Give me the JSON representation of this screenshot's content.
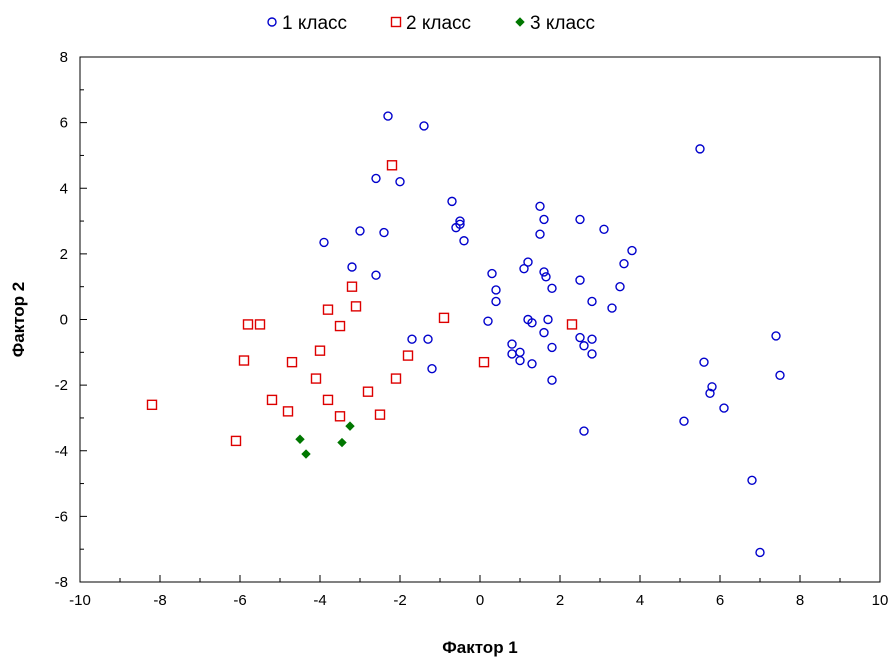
{
  "chart_data": {
    "type": "scatter",
    "xlabel": "Фактор 1",
    "ylabel": "Фактор 2",
    "xlim": [
      -10,
      10
    ],
    "ylim": [
      -8,
      8
    ],
    "x_ticks": [
      -10,
      -8,
      -6,
      -4,
      -2,
      0,
      2,
      4,
      6,
      8,
      10
    ],
    "y_ticks": [
      -8,
      -6,
      -4,
      -2,
      0,
      2,
      4,
      6,
      8
    ],
    "grid": false,
    "legend_position": "top-center",
    "series": [
      {
        "name": "1 класс",
        "marker": "circle",
        "color": "#0000cc",
        "points": [
          [
            -2.3,
            6.2
          ],
          [
            -1.4,
            5.9
          ],
          [
            -2.6,
            4.3
          ],
          [
            -2.0,
            4.2
          ],
          [
            -0.7,
            3.6
          ],
          [
            -0.5,
            3.0
          ],
          [
            -0.5,
            2.9
          ],
          [
            -0.6,
            2.8
          ],
          [
            -0.4,
            2.4
          ],
          [
            -3.0,
            2.7
          ],
          [
            -2.4,
            2.65
          ],
          [
            -3.9,
            2.35
          ],
          [
            -3.2,
            1.6
          ],
          [
            -2.6,
            1.35
          ],
          [
            -1.7,
            -0.6
          ],
          [
            -1.3,
            -0.6
          ],
          [
            -1.2,
            -1.5
          ],
          [
            0.2,
            -0.05
          ],
          [
            0.3,
            1.4
          ],
          [
            0.4,
            0.9
          ],
          [
            0.4,
            0.55
          ],
          [
            0.8,
            -0.75
          ],
          [
            0.8,
            -1.05
          ],
          [
            1.0,
            -1.0
          ],
          [
            1.0,
            -1.25
          ],
          [
            1.1,
            1.55
          ],
          [
            1.2,
            1.75
          ],
          [
            1.2,
            0.0
          ],
          [
            1.3,
            -0.1
          ],
          [
            1.3,
            -1.35
          ],
          [
            1.5,
            3.45
          ],
          [
            1.6,
            3.05
          ],
          [
            1.5,
            2.6
          ],
          [
            1.6,
            1.45
          ],
          [
            1.65,
            1.3
          ],
          [
            1.6,
            -0.4
          ],
          [
            1.7,
            0.0
          ],
          [
            1.8,
            0.95
          ],
          [
            1.8,
            -0.85
          ],
          [
            1.8,
            -1.85
          ],
          [
            2.5,
            -0.55
          ],
          [
            2.6,
            -0.8
          ],
          [
            2.8,
            -1.05
          ],
          [
            2.6,
            -3.4
          ],
          [
            2.5,
            3.05
          ],
          [
            2.5,
            1.2
          ],
          [
            2.8,
            0.55
          ],
          [
            2.8,
            -0.6
          ],
          [
            3.1,
            2.75
          ],
          [
            3.3,
            0.35
          ],
          [
            3.5,
            1.0
          ],
          [
            3.6,
            1.7
          ],
          [
            3.8,
            2.1
          ],
          [
            5.5,
            5.2
          ],
          [
            5.6,
            -1.3
          ],
          [
            5.8,
            -2.05
          ],
          [
            5.75,
            -2.25
          ],
          [
            6.1,
            -2.7
          ],
          [
            5.1,
            -3.1
          ],
          [
            6.8,
            -4.9
          ],
          [
            7.0,
            -7.1
          ],
          [
            7.4,
            -0.5
          ],
          [
            7.5,
            -1.7
          ]
        ]
      },
      {
        "name": "2 класс",
        "marker": "square",
        "color": "#dd0000",
        "points": [
          [
            -2.2,
            4.7
          ],
          [
            -3.2,
            1.0
          ],
          [
            -3.1,
            0.4
          ],
          [
            -3.8,
            0.3
          ],
          [
            -3.5,
            -0.2
          ],
          [
            -0.9,
            0.05
          ],
          [
            -1.8,
            -1.1
          ],
          [
            -2.1,
            -1.8
          ],
          [
            -2.5,
            -2.9
          ],
          [
            -2.8,
            -2.2
          ],
          [
            -3.5,
            -2.95
          ],
          [
            -3.8,
            -2.45
          ],
          [
            -4.1,
            -1.8
          ],
          [
            -4.0,
            -0.95
          ],
          [
            -4.7,
            -1.3
          ],
          [
            -4.8,
            -2.8
          ],
          [
            -5.2,
            -2.45
          ],
          [
            -5.5,
            -0.15
          ],
          [
            -5.8,
            -0.15
          ],
          [
            -5.9,
            -1.25
          ],
          [
            -6.1,
            -3.7
          ],
          [
            -8.2,
            -2.6
          ],
          [
            0.1,
            -1.3
          ],
          [
            2.3,
            -0.15
          ]
        ]
      },
      {
        "name": "3 класс",
        "marker": "diamond",
        "color": "#007700",
        "points": [
          [
            -4.5,
            -3.65
          ],
          [
            -4.35,
            -4.1
          ],
          [
            -3.45,
            -3.75
          ],
          [
            -3.25,
            -3.25
          ]
        ]
      }
    ]
  }
}
